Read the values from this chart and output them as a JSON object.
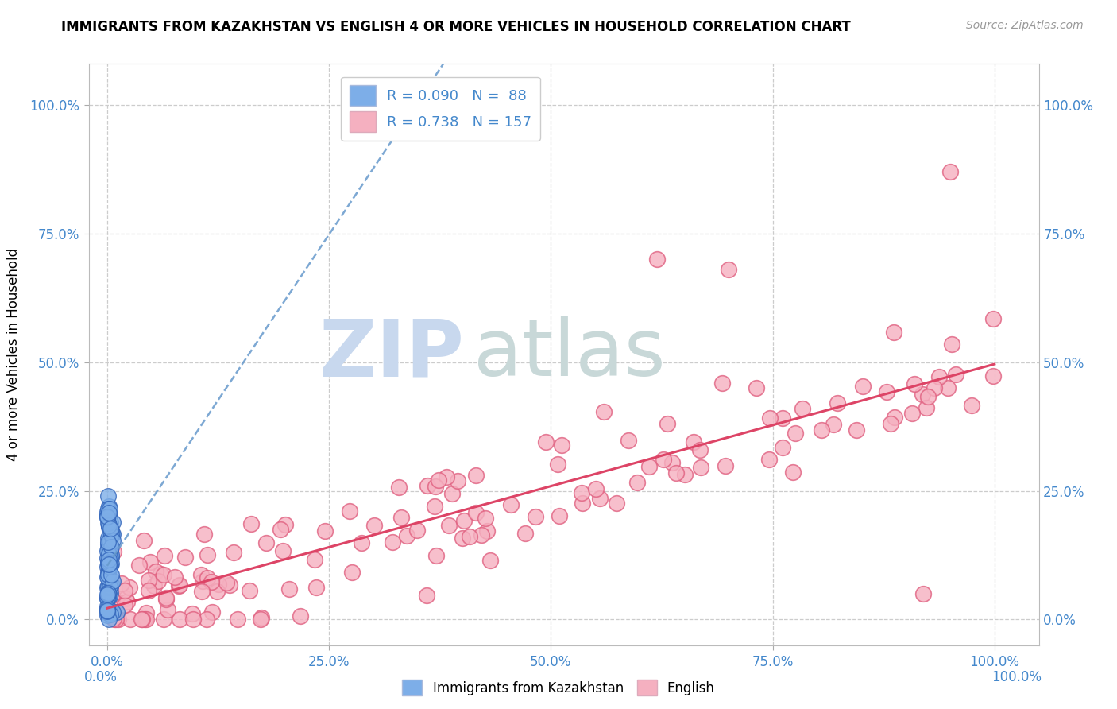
{
  "title": "IMMIGRANTS FROM KAZAKHSTAN VS ENGLISH 4 OR MORE VEHICLES IN HOUSEHOLD CORRELATION CHART",
  "source": "Source: ZipAtlas.com",
  "ylabel": "4 or more Vehicles in Household",
  "tick_labels": [
    "0.0%",
    "25.0%",
    "50.0%",
    "75.0%",
    "100.0%"
  ],
  "tick_values": [
    0,
    25,
    50,
    75,
    100
  ],
  "xlim": [
    -2,
    105
  ],
  "ylim": [
    -5,
    108
  ],
  "legend_blue_label": "Immigrants from Kazakhstan",
  "legend_pink_label": "English",
  "R_blue": 0.09,
  "N_blue": 88,
  "R_pink": 0.738,
  "N_pink": 157,
  "blue_scatter_color": "#7daee8",
  "blue_edge_color": "#3366bb",
  "blue_line_color": "#6699cc",
  "pink_scatter_color": "#f5b0c0",
  "pink_edge_color": "#e06080",
  "pink_line_color": "#dd4466",
  "watermark_zip_color": "#c8d8ee",
  "watermark_atlas_color": "#c8d8d8",
  "grid_color": "#cccccc",
  "tick_color": "#4488cc",
  "background_color": "#ffffff",
  "title_fontsize": 12,
  "axis_fontsize": 12,
  "tick_fontsize": 12
}
